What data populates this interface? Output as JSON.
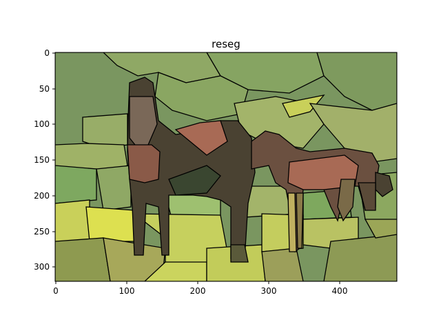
{
  "title": "reseg",
  "x_ticks": [
    "0",
    "100",
    "200",
    "300",
    "400"
  ],
  "y_ticks": [
    "0",
    "50",
    "100",
    "150",
    "200",
    "250",
    "300"
  ],
  "colors": {
    "bg_dark_green": "#7a9660",
    "bg_mid_green": "#8fa865",
    "bg_light_green": "#a3b46a",
    "yellow_green": "#c9d05a",
    "bright_yellow": "#dde050",
    "olive": "#9aa05a",
    "horse_dark": "#4a4232",
    "horse_brown": "#6b5040",
    "horse_reddish": "#a86a55",
    "horse_gray": "#7a6858"
  }
}
